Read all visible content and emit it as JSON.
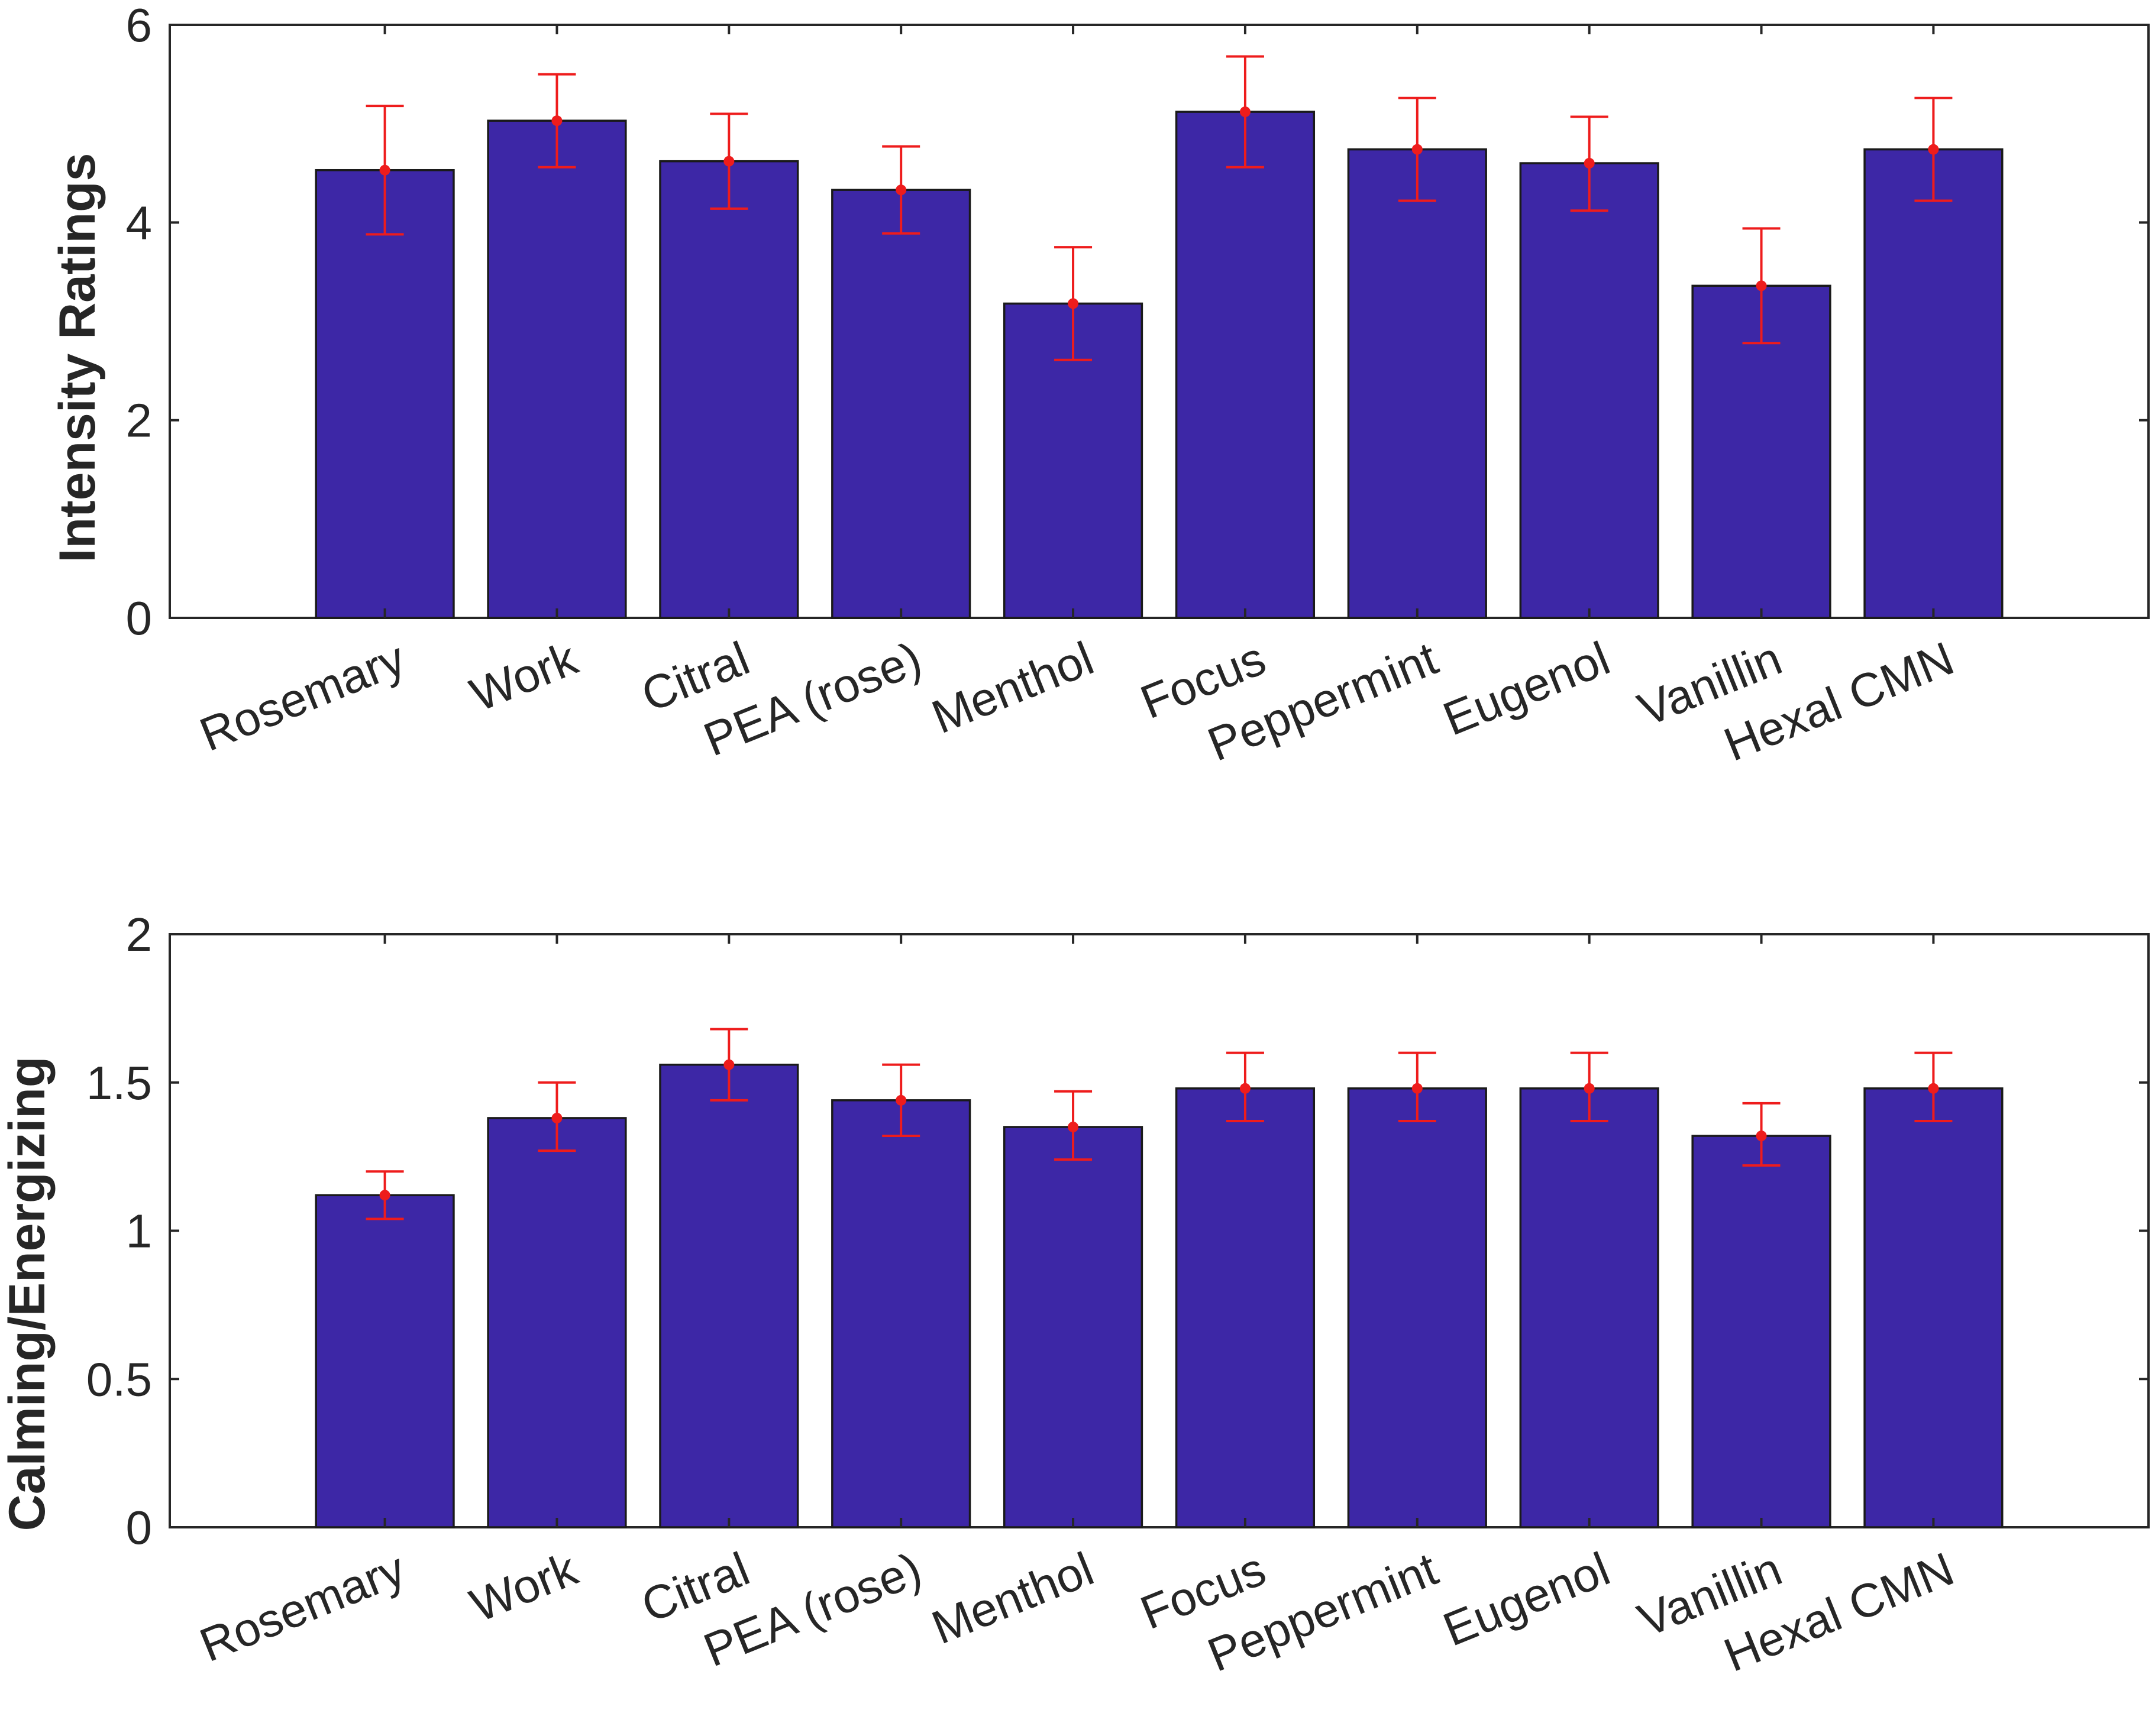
{
  "colors": {
    "bar_fill": "#3D27A6",
    "bar_edge": "#1a1a1a",
    "error_bar": "#EE1C1C",
    "axis": "#262626",
    "background": "#ffffff"
  },
  "chart_data": [
    {
      "type": "bar",
      "title": "",
      "xlabel": "",
      "ylabel": "Intensity Ratings",
      "ylim": [
        0,
        6
      ],
      "yticks": [
        0,
        2,
        4,
        6
      ],
      "ytick_labels": [
        "0",
        "2",
        "4",
        "6"
      ],
      "grid": false,
      "categories": [
        "Rosemary",
        "Work",
        "Citral",
        "PEA (rose)",
        "Menthol",
        "Focus",
        "Peppermint",
        "Eugenol",
        "Vanillin",
        "Hexal CMN"
      ],
      "values": [
        4.53,
        5.03,
        4.62,
        4.33,
        3.18,
        5.12,
        4.74,
        4.6,
        3.36,
        4.74
      ],
      "error_low": [
        3.88,
        4.56,
        4.14,
        3.89,
        2.61,
        4.56,
        4.22,
        4.12,
        2.78,
        4.22
      ],
      "error_high": [
        5.18,
        5.5,
        5.1,
        4.77,
        3.75,
        5.68,
        5.26,
        5.07,
        3.94,
        5.26
      ]
    },
    {
      "type": "bar",
      "title": "",
      "xlabel": "",
      "ylabel": "Calming/Energizing",
      "ylim": [
        0,
        2
      ],
      "yticks": [
        0,
        0.5,
        1,
        1.5,
        2
      ],
      "ytick_labels": [
        "0",
        "0.5",
        "1",
        "1.5",
        "2"
      ],
      "grid": false,
      "categories": [
        "Rosemary",
        "Work",
        "Citral",
        "PEA (rose)",
        "Menthol",
        "Focus",
        "Peppermint",
        "Eugenol",
        "Vanillin",
        "Hexal CMN"
      ],
      "values": [
        1.12,
        1.38,
        1.56,
        1.44,
        1.35,
        1.48,
        1.48,
        1.48,
        1.32,
        1.48
      ],
      "error_low": [
        1.04,
        1.27,
        1.44,
        1.32,
        1.24,
        1.37,
        1.37,
        1.37,
        1.22,
        1.37
      ],
      "error_high": [
        1.2,
        1.5,
        1.68,
        1.56,
        1.47,
        1.6,
        1.6,
        1.6,
        1.43,
        1.6
      ]
    }
  ]
}
